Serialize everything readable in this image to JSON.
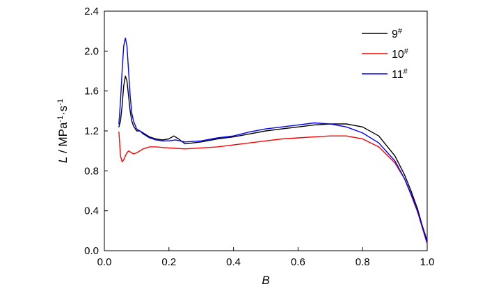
{
  "chart_data": {
    "type": "line",
    "xlabel": "B",
    "ylabel": {
      "var": "L",
      "sep": " / MPa",
      "exp1": "-1",
      "dot": "·s",
      "exp2": "-1"
    },
    "xlim": [
      0.0,
      1.0
    ],
    "ylim": [
      0.0,
      2.4
    ],
    "xticks": [
      "0.0",
      "0.2",
      "0.4",
      "0.6",
      "0.8",
      "1.0"
    ],
    "yticks": [
      "0.0",
      "0.4",
      "0.8",
      "1.2",
      "1.6",
      "2.0",
      "2.4"
    ],
    "legend_position": "top-right",
    "series": [
      {
        "name": "9",
        "name_sup": "#",
        "color": "#000000",
        "x": [
          0.045,
          0.05,
          0.055,
          0.06,
          0.065,
          0.07,
          0.075,
          0.08,
          0.085,
          0.09,
          0.1,
          0.11,
          0.12,
          0.14,
          0.16,
          0.18,
          0.2,
          0.215,
          0.23,
          0.25,
          0.3,
          0.35,
          0.4,
          0.45,
          0.5,
          0.55,
          0.6,
          0.65,
          0.7,
          0.75,
          0.8,
          0.85,
          0.9,
          0.93,
          0.95,
          0.97,
          0.985,
          1.0
        ],
        "y": [
          1.24,
          1.3,
          1.45,
          1.65,
          1.75,
          1.7,
          1.55,
          1.4,
          1.3,
          1.25,
          1.2,
          1.2,
          1.18,
          1.14,
          1.12,
          1.11,
          1.12,
          1.15,
          1.12,
          1.07,
          1.09,
          1.12,
          1.14,
          1.17,
          1.2,
          1.22,
          1.24,
          1.26,
          1.27,
          1.27,
          1.24,
          1.15,
          0.95,
          0.76,
          0.6,
          0.42,
          0.25,
          0.1
        ]
      },
      {
        "name": "10",
        "name_sup": "#",
        "color": "#ff0000",
        "x": [
          0.045,
          0.05,
          0.055,
          0.06,
          0.065,
          0.07,
          0.075,
          0.08,
          0.09,
          0.1,
          0.12,
          0.14,
          0.16,
          0.2,
          0.25,
          0.3,
          0.35,
          0.4,
          0.45,
          0.5,
          0.55,
          0.6,
          0.65,
          0.7,
          0.75,
          0.8,
          0.85,
          0.9,
          0.93,
          0.95,
          0.97,
          0.985,
          1.0
        ],
        "y": [
          1.19,
          0.95,
          0.89,
          0.91,
          0.95,
          0.98,
          1.0,
          0.99,
          0.97,
          0.98,
          1.02,
          1.04,
          1.04,
          1.03,
          1.02,
          1.03,
          1.04,
          1.06,
          1.08,
          1.1,
          1.12,
          1.13,
          1.14,
          1.15,
          1.15,
          1.12,
          1.04,
          0.88,
          0.72,
          0.56,
          0.39,
          0.23,
          0.07
        ]
      },
      {
        "name": "11",
        "name_sup": "#",
        "color": "#0000ff",
        "x": [
          0.045,
          0.05,
          0.055,
          0.06,
          0.065,
          0.07,
          0.075,
          0.08,
          0.085,
          0.09,
          0.1,
          0.11,
          0.12,
          0.14,
          0.16,
          0.18,
          0.2,
          0.22,
          0.25,
          0.3,
          0.35,
          0.4,
          0.45,
          0.5,
          0.55,
          0.6,
          0.65,
          0.7,
          0.75,
          0.8,
          0.85,
          0.9,
          0.93,
          0.95,
          0.97,
          0.985,
          1.0
        ],
        "y": [
          1.27,
          1.5,
          1.8,
          2.05,
          2.13,
          2.05,
          1.8,
          1.55,
          1.38,
          1.3,
          1.22,
          1.2,
          1.17,
          1.13,
          1.11,
          1.1,
          1.1,
          1.11,
          1.09,
          1.1,
          1.13,
          1.15,
          1.19,
          1.22,
          1.24,
          1.26,
          1.28,
          1.27,
          1.24,
          1.18,
          1.08,
          0.9,
          0.72,
          0.57,
          0.4,
          0.24,
          0.08
        ]
      }
    ]
  }
}
